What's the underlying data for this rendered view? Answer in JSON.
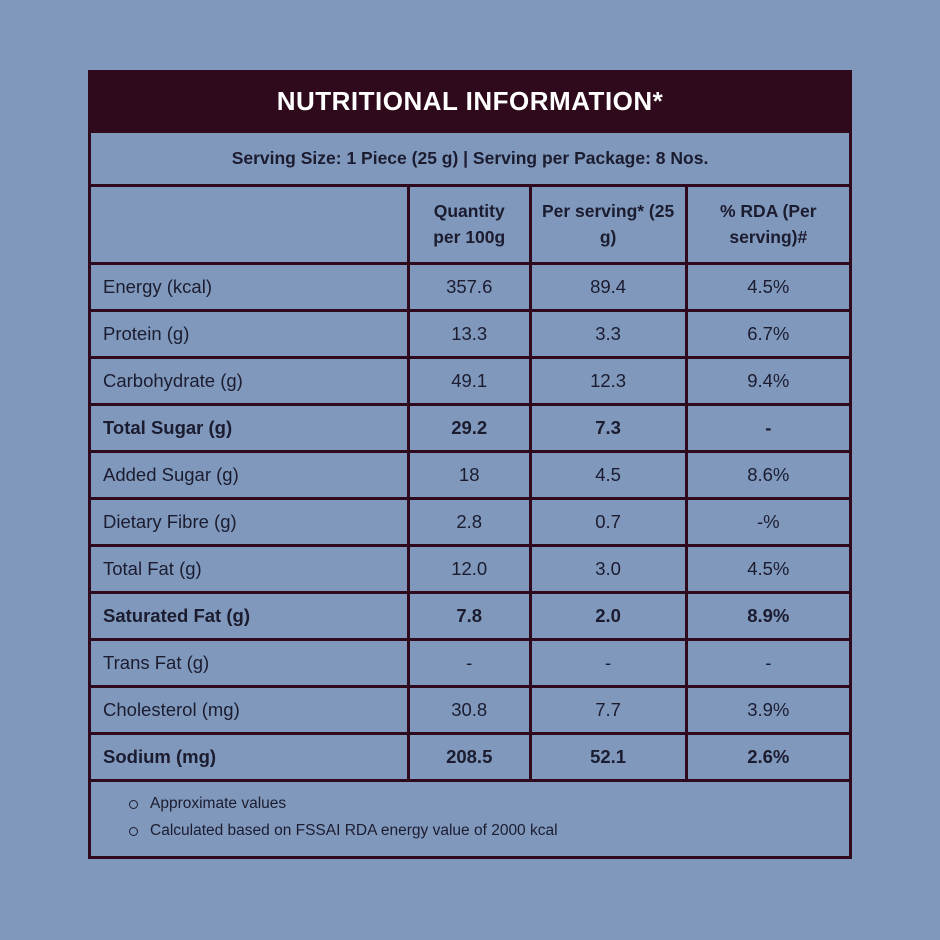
{
  "colors": {
    "background": "#7f98bc",
    "table_border": "#2e0a1c",
    "header_bg": "#2e0a1c",
    "header_text": "#ffffff",
    "body_text": "#1c1c30"
  },
  "title": "NUTRITIONAL INFORMATION*",
  "serving_info": "Serving Size: 1 Piece (25 g) | Serving per Package: 8 Nos.",
  "table": {
    "columns": [
      "",
      "Quantity per 100g",
      "Per serving* (25 g)",
      "% RDA (Per serving)#"
    ],
    "rows": [
      {
        "label": "Energy (kcal)",
        "bold": false,
        "values": [
          "357.6",
          "89.4",
          "4.5%"
        ]
      },
      {
        "label": "Protein (g)",
        "bold": false,
        "values": [
          "13.3",
          "3.3",
          "6.7%"
        ]
      },
      {
        "label": "Carbohydrate (g)",
        "bold": false,
        "values": [
          "49.1",
          "12.3",
          "9.4%"
        ]
      },
      {
        "label": "Total Sugar (g)",
        "bold": true,
        "values": [
          "29.2",
          "7.3",
          "-"
        ]
      },
      {
        "label": "Added Sugar (g)",
        "bold": false,
        "values": [
          "18",
          "4.5",
          "8.6%"
        ]
      },
      {
        "label": "Dietary Fibre (g)",
        "bold": false,
        "values": [
          "2.8",
          "0.7",
          "-%"
        ]
      },
      {
        "label": "Total Fat (g)",
        "bold": false,
        "values": [
          "12.0",
          "3.0",
          "4.5%"
        ]
      },
      {
        "label": "Saturated Fat (g)",
        "bold": true,
        "values": [
          "7.8",
          "2.0",
          "8.9%"
        ]
      },
      {
        "label": "Trans Fat (g)",
        "bold": false,
        "values": [
          "-",
          "-",
          "-"
        ]
      },
      {
        "label": "Cholesterol (mg)",
        "bold": false,
        "values": [
          "30.8",
          "7.7",
          "3.9%"
        ]
      },
      {
        "label": "Sodium (mg)",
        "bold": true,
        "values": [
          "208.5",
          "52.1",
          "2.6%"
        ]
      }
    ]
  },
  "notes": [
    "Approximate values",
    "Calculated based on FSSAI RDA energy value of 2000 kcal"
  ]
}
